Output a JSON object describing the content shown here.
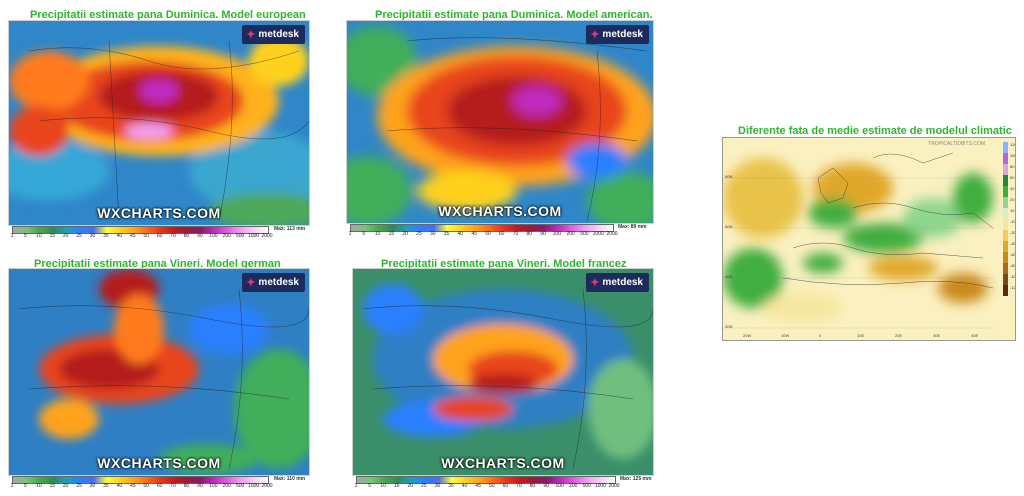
{
  "panels": [
    {
      "id": "eu",
      "title": "Precipitatii estimate pana Duminica. Model european",
      "max": "Max: 113 mm",
      "logo": "metdesk",
      "brand": "WXCHARTS.COM"
    },
    {
      "id": "us",
      "title": "Precipitatii estimate pana Duminica. Model american.",
      "max": "Max: 89 mm",
      "logo": "metdesk",
      "brand": "WXCHARTS.COM"
    },
    {
      "id": "de",
      "title": "Precipitatii estimate pana Vineri. Model german",
      "max": "Max: 110 mm",
      "logo": "metdesk",
      "brand": "WXCHARTS.COM"
    },
    {
      "id": "fr",
      "title": "Precipitatii estimate pana Vineri. Model francez",
      "max": "Max: 125 mm",
      "logo": "metdesk",
      "brand": "WXCHARTS.COM"
    }
  ],
  "scale_ticks": [
    "1",
    "5",
    "10",
    "15",
    "20",
    "25",
    "30",
    "35",
    "40",
    "45",
    "50",
    "60",
    "70",
    "80",
    "90",
    "100",
    "200",
    "500",
    "1000",
    "2000"
  ],
  "scale_colors": [
    "#a6a6a6",
    "#7ac27a",
    "#4da64d",
    "#2e8b57",
    "#1f9fbf",
    "#2b7fff",
    "#4a6cf0",
    "#ffff33",
    "#ffd11a",
    "#ffa31a",
    "#ff6a1a",
    "#e8361a",
    "#c41a1a",
    "#9b1a3a",
    "#8a1a6a",
    "#c02ac0",
    "#e060e0",
    "#f2a0f2",
    "#f8d0f8",
    "#ffffff"
  ],
  "climate": {
    "title": "Diferente fata de medie estimate de modelul climatic",
    "credit": "TROPICALTIDBITS.COM",
    "legend_values": [
      "120",
      "100",
      "80",
      "60",
      "40",
      "20",
      "10",
      "-10",
      "-20",
      "-40",
      "-60",
      "-80",
      "-100",
      "-120"
    ],
    "legend_colors": [
      "#8ab4ff",
      "#b06ad8",
      "#d8a6e0",
      "#1f8a3a",
      "#3fae3f",
      "#8fd68f",
      "#d6f0c2",
      "#f6e7a0",
      "#f0cc5a",
      "#e0a82a",
      "#c98a1a",
      "#a86b1a",
      "#7a4a1a",
      "#5a2a0a"
    ],
    "lat_labels": [
      "60N",
      "50N",
      "40N",
      "30N"
    ],
    "lon_labels": [
      "20W",
      "10W",
      "0",
      "10E",
      "20E",
      "30E",
      "40E"
    ]
  }
}
